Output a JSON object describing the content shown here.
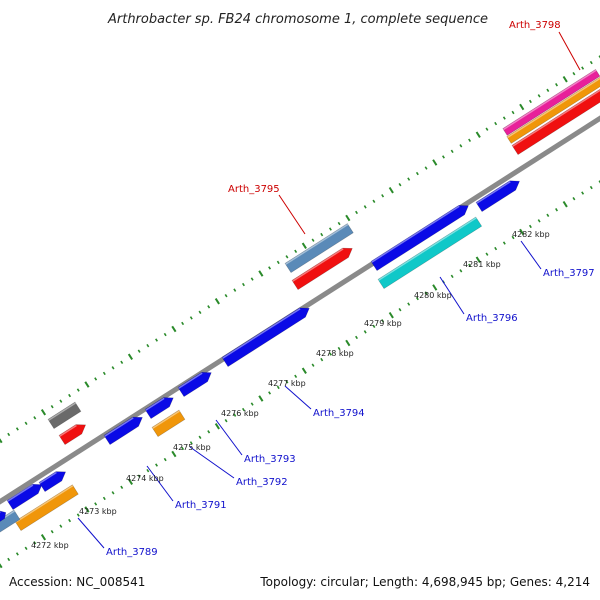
{
  "title": "Arthrobacter sp. FB24 chromosome 1, complete sequence",
  "accession": "Accession: NC_008541",
  "summary": "Topology: circular; Length: 4,698,945 bp; Genes: 4,214",
  "colors": {
    "backbone": "#8a8a8a",
    "dots": "#2a8a2a",
    "label_blue": "#1010cc",
    "label_red": "#cc0000",
    "blue": "#0a0ae6",
    "red": "#f01010",
    "orange": "#f0960a",
    "steel": "#5a8ab8",
    "gray": "#6a6a6a",
    "cyan": "#10c8c8",
    "magenta": "#e8209a"
  },
  "scale_labels": [
    "4272 kbp",
    "4273 kbp",
    "4274 kbp",
    "4275 kbp",
    "4276 kbp",
    "4277 kbp",
    "4278 kbp",
    "4279 kbp",
    "4280 kbp",
    "4281 kbp",
    "4282 kbp"
  ],
  "gene_labels": [
    {
      "text": "Arth_3789",
      "color": "blue"
    },
    {
      "text": "Arth_3791",
      "color": "blue"
    },
    {
      "text": "Arth_3792",
      "color": "blue"
    },
    {
      "text": "Arth_3793",
      "color": "blue"
    },
    {
      "text": "Arth_3794",
      "color": "blue"
    },
    {
      "text": "Arth_3795",
      "color": "red"
    },
    {
      "text": "Arth_3796",
      "color": "blue"
    },
    {
      "text": "Arth_3797",
      "color": "blue"
    },
    {
      "text": "Arth_3798",
      "color": "red"
    }
  ]
}
